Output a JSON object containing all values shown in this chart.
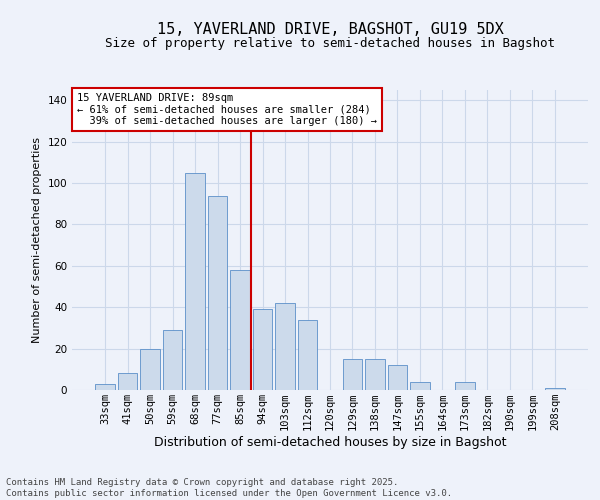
{
  "title": "15, YAVERLAND DRIVE, BAGSHOT, GU19 5DX",
  "subtitle": "Size of property relative to semi-detached houses in Bagshot",
  "xlabel": "Distribution of semi-detached houses by size in Bagshot",
  "ylabel": "Number of semi-detached properties",
  "bar_labels": [
    "33sqm",
    "41sqm",
    "50sqm",
    "59sqm",
    "68sqm",
    "77sqm",
    "85sqm",
    "94sqm",
    "103sqm",
    "112sqm",
    "120sqm",
    "129sqm",
    "138sqm",
    "147sqm",
    "155sqm",
    "164sqm",
    "173sqm",
    "182sqm",
    "190sqm",
    "199sqm",
    "208sqm"
  ],
  "bar_values": [
    3,
    8,
    20,
    29,
    105,
    94,
    58,
    39,
    42,
    34,
    0,
    15,
    15,
    12,
    4,
    0,
    4,
    0,
    0,
    0,
    1
  ],
  "bar_color": "#ccdaeb",
  "bar_edge_color": "#5b8fc9",
  "grid_color": "#ccd8ea",
  "background_color": "#eef2fa",
  "vline_x": 6.5,
  "vline_color": "#cc0000",
  "annotation_text": "15 YAVERLAND DRIVE: 89sqm\n← 61% of semi-detached houses are smaller (284)\n  39% of semi-detached houses are larger (180) →",
  "annotation_box_color": "#ffffff",
  "annotation_box_edge": "#cc0000",
  "ylim": [
    0,
    145
  ],
  "yticks": [
    0,
    20,
    40,
    60,
    80,
    100,
    120,
    140
  ],
  "footer": "Contains HM Land Registry data © Crown copyright and database right 2025.\nContains public sector information licensed under the Open Government Licence v3.0.",
  "title_fontsize": 11,
  "subtitle_fontsize": 9,
  "ylabel_fontsize": 8,
  "xlabel_fontsize": 9,
  "tick_fontsize": 7.5,
  "annotation_fontsize": 7.5,
  "footer_fontsize": 6.5
}
